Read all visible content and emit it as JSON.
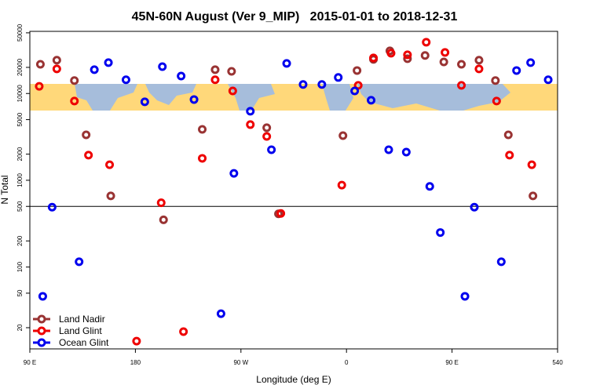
{
  "chart_data": {
    "type": "scatter",
    "title": "45N-60N August (Ver 9_MIP)   2015-01-01 to 2018-12-31",
    "xlabel": "Longitude (deg E)",
    "ylabel": "N Total",
    "log_y": true,
    "legend": "lower left",
    "hline": 500,
    "xlim": [
      90,
      540
    ],
    "xticks": [
      {
        "value": 90,
        "label": "90 E"
      },
      180,
      {
        "value": 270,
        "label": "90 W"
      },
      {
        "value": 360,
        "label": "0"
      },
      {
        "value": 450,
        "label": "90 E"
      },
      540
    ],
    "ylim": [
      11.4,
      52000
    ],
    "yticks": [
      20,
      50,
      100,
      200,
      500,
      1000,
      2000,
      5000,
      10000,
      20000,
      50000
    ],
    "series": [
      {
        "name": "Land Nadir",
        "color": "#993333",
        "x": [
          99,
          113,
          128,
          138,
          159,
          204,
          237,
          248,
          262,
          292,
          302,
          357,
          369,
          383,
          397,
          412,
          427,
          443,
          458,
          473,
          487,
          498,
          519
        ],
        "values": [
          21700,
          24200,
          14100,
          3340,
          660,
          350,
          3860,
          18800,
          18000,
          4030,
          410,
          3270,
          18400,
          24700,
          31000,
          25200,
          27400,
          23100,
          21700,
          24200,
          14100,
          3340,
          660
        ]
      },
      {
        "name": "Land Glint",
        "color": "#ee0000",
        "x": [
          98,
          113,
          128,
          140,
          158,
          181,
          202,
          221,
          237,
          248,
          263,
          278,
          292,
          304,
          356,
          370,
          383,
          398,
          412,
          428,
          444,
          458,
          473,
          488,
          499,
          518
        ],
        "values": [
          12100,
          19200,
          8180,
          1950,
          1510,
          14,
          550,
          18,
          1790,
          14400,
          10700,
          4380,
          3200,
          415,
          880,
          12400,
          25700,
          29100,
          27900,
          39000,
          29700,
          12400,
          19200,
          8180,
          1950,
          1510
        ]
      },
      {
        "name": "Ocean Glint",
        "color": "#0000ee",
        "x": [
          101,
          109,
          132,
          145,
          157,
          172,
          188,
          203,
          219,
          230,
          253,
          264,
          278,
          296,
          309,
          323,
          339,
          353,
          367,
          381,
          396,
          411,
          431,
          440,
          461,
          469,
          492,
          505,
          517,
          532
        ],
        "values": [
          46,
          490,
          115,
          18800,
          22700,
          14400,
          8010,
          20400,
          15900,
          8520,
          29,
          1200,
          6240,
          2250,
          22200,
          12700,
          12700,
          15300,
          10700,
          8350,
          2250,
          2110,
          850,
          250,
          46,
          490,
          115,
          18400,
          22700,
          14400
        ]
      }
    ]
  }
}
